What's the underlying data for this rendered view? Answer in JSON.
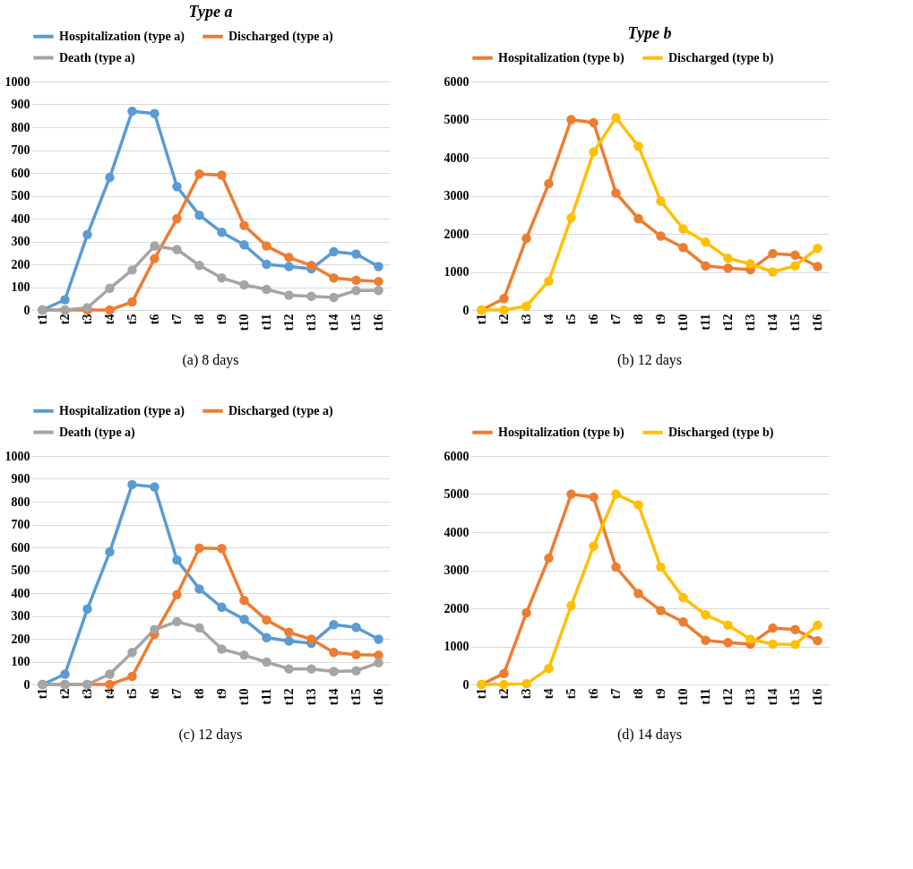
{
  "chart_data": [
    {
      "type": "line",
      "title": "Type a",
      "annotations": [
        "(a) 8 days"
      ],
      "categories": [
        "t1",
        "t2",
        "t3",
        "t4",
        "t5",
        "t6",
        "t7",
        "t8",
        "t9",
        "t10",
        "t11",
        "t12",
        "t13",
        "t14",
        "t15",
        "t16"
      ],
      "ylim": [
        0,
        1000
      ],
      "yticks": [
        0,
        100,
        200,
        300,
        400,
        500,
        600,
        700,
        800,
        900,
        1000
      ],
      "grid": "y",
      "legend": "top",
      "marker": "circle",
      "line_style": "solid",
      "series": [
        {
          "name": "Hospitalization (type a)",
          "color": "#5b9bd5",
          "values": [
            0,
            45,
            330,
            580,
            870,
            860,
            540,
            415,
            340,
            285,
            200,
            190,
            180,
            255,
            245,
            190
          ]
        },
        {
          "name": "Discharged (type a)",
          "color": "#ed7d31",
          "values": [
            0,
            0,
            0,
            0,
            35,
            225,
            400,
            595,
            590,
            370,
            280,
            230,
            195,
            140,
            130,
            125
          ]
        },
        {
          "name": "Death (type a)",
          "color": "#a5a5a5",
          "values": [
            0,
            0,
            10,
            95,
            175,
            280,
            265,
            195,
            140,
            110,
            90,
            65,
            60,
            55,
            85,
            85
          ]
        }
      ]
    },
    {
      "type": "line",
      "title": "Type b",
      "annotations": [
        "(b) 12 days"
      ],
      "categories": [
        "t1",
        "t2",
        "t3",
        "t4",
        "t5",
        "t6",
        "t7",
        "t8",
        "t9",
        "t10",
        "t11",
        "t12",
        "t13",
        "t14",
        "t15",
        "t16"
      ],
      "ylim": [
        0,
        6000
      ],
      "yticks": [
        0,
        1000,
        2000,
        3000,
        4000,
        5000,
        6000
      ],
      "grid": "y",
      "legend": "top",
      "marker": "circle",
      "line_style": "solid",
      "series": [
        {
          "name": "Hospitalization (type b)",
          "color": "#ed7d31",
          "values": [
            0,
            300,
            1880,
            3320,
            5000,
            4920,
            3070,
            2400,
            1940,
            1640,
            1160,
            1100,
            1060,
            1480,
            1440,
            1140
          ]
        },
        {
          "name": "Discharged (type b)",
          "color": "#ffc000",
          "values": [
            0,
            0,
            100,
            760,
            2420,
            4150,
            5050,
            4300,
            2860,
            2130,
            1780,
            1360,
            1210,
            1000,
            1160,
            1620
          ]
        }
      ]
    },
    {
      "type": "line",
      "annotations": [
        "(c) 12 days"
      ],
      "categories": [
        "t1",
        "t2",
        "t3",
        "t4",
        "t5",
        "t6",
        "t7",
        "t8",
        "t9",
        "t10",
        "t11",
        "t12",
        "t13",
        "t14",
        "t15",
        "t16"
      ],
      "ylim": [
        0,
        1000
      ],
      "yticks": [
        0,
        100,
        200,
        300,
        400,
        500,
        600,
        700,
        800,
        900,
        1000
      ],
      "grid": "y",
      "legend": "top",
      "marker": "circle",
      "line_style": "solid",
      "series": [
        {
          "name": "Hospitalization (type a)",
          "color": "#5b9bd5",
          "values": [
            0,
            45,
            330,
            580,
            875,
            865,
            545,
            418,
            338,
            285,
            205,
            190,
            180,
            262,
            250,
            198
          ]
        },
        {
          "name": "Discharged (type a)",
          "color": "#ed7d31",
          "values": [
            0,
            0,
            0,
            0,
            35,
            220,
            393,
            597,
            595,
            368,
            282,
            228,
            198,
            140,
            130,
            128
          ]
        },
        {
          "name": "Death (type a)",
          "color": "#a5a5a5",
          "values": [
            0,
            0,
            0,
            45,
            140,
            240,
            275,
            248,
            155,
            128,
            98,
            68,
            68,
            57,
            60,
            95
          ]
        }
      ]
    },
    {
      "type": "line",
      "annotations": [
        "(d) 14 days"
      ],
      "categories": [
        "t1",
        "t2",
        "t3",
        "t4",
        "t5",
        "t6",
        "t7",
        "t8",
        "t9",
        "t10",
        "t11",
        "t12",
        "t13",
        "t14",
        "t15",
        "t16"
      ],
      "ylim": [
        0,
        6000
      ],
      "yticks": [
        0,
        1000,
        2000,
        3000,
        4000,
        5000,
        6000
      ],
      "grid": "y",
      "legend": "top",
      "marker": "circle",
      "line_style": "solid",
      "series": [
        {
          "name": "Hospitalization (type b)",
          "color": "#ed7d31",
          "values": [
            0,
            290,
            1880,
            3320,
            5000,
            4920,
            3080,
            2390,
            1940,
            1640,
            1160,
            1100,
            1060,
            1480,
            1440,
            1150
          ]
        },
        {
          "name": "Discharged (type b)",
          "color": "#ffc000",
          "values": [
            0,
            0,
            20,
            420,
            2070,
            3630,
            5000,
            4720,
            3080,
            2280,
            1830,
            1560,
            1190,
            1060,
            1050,
            1560
          ]
        }
      ]
    }
  ]
}
